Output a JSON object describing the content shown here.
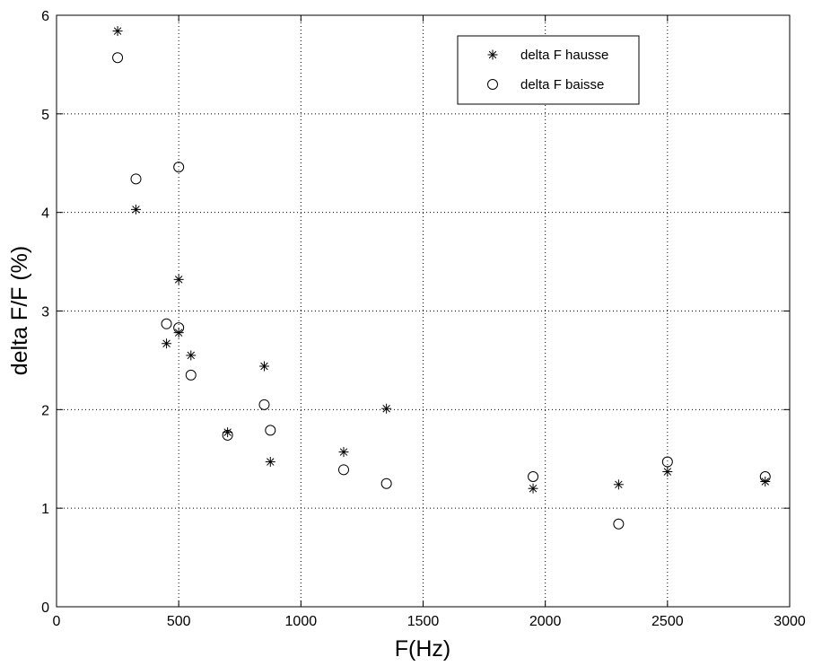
{
  "chart_data": {
    "type": "scatter",
    "title": "",
    "xlabel": "F(Hz)",
    "ylabel": "delta F/F (%)",
    "xlim": [
      0,
      3000
    ],
    "ylim": [
      0,
      6
    ],
    "xticks": [
      0,
      500,
      1000,
      1500,
      2000,
      2500,
      3000
    ],
    "yticks": [
      0,
      1,
      2,
      3,
      4,
      5,
      6
    ],
    "grid": true,
    "legend_position": "top-right",
    "series": [
      {
        "name": "delta F hausse",
        "marker": "asterisk",
        "color": "#000000",
        "x": [
          250,
          325,
          450,
          500,
          500,
          550,
          700,
          850,
          875,
          1175,
          1350,
          1950,
          2300,
          2500,
          2900
        ],
        "y": [
          5.84,
          4.03,
          2.67,
          3.32,
          2.78,
          2.55,
          1.77,
          2.44,
          1.47,
          1.57,
          2.01,
          1.2,
          1.24,
          1.37,
          1.27
        ]
      },
      {
        "name": "delta F baisse",
        "marker": "circle",
        "color": "#000000",
        "x": [
          250,
          325,
          450,
          500,
          500,
          550,
          700,
          850,
          875,
          1175,
          1350,
          1950,
          2300,
          2500,
          2900
        ],
        "y": [
          5.57,
          4.34,
          2.87,
          4.46,
          2.83,
          2.35,
          1.74,
          2.05,
          1.79,
          1.39,
          1.25,
          1.32,
          0.84,
          1.47,
          1.32
        ]
      }
    ]
  }
}
